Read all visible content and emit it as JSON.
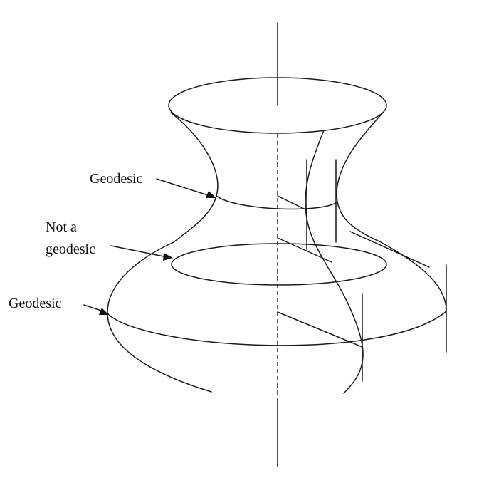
{
  "figure": {
    "labels": {
      "geodesic_top": "Geodesic",
      "not_geodesic_line1": "Not a",
      "not_geodesic_line2": "geodesic",
      "geodesic_bottom": "Geodesic"
    },
    "line_color": "#1a1a1a",
    "background": "#ffffff"
  }
}
